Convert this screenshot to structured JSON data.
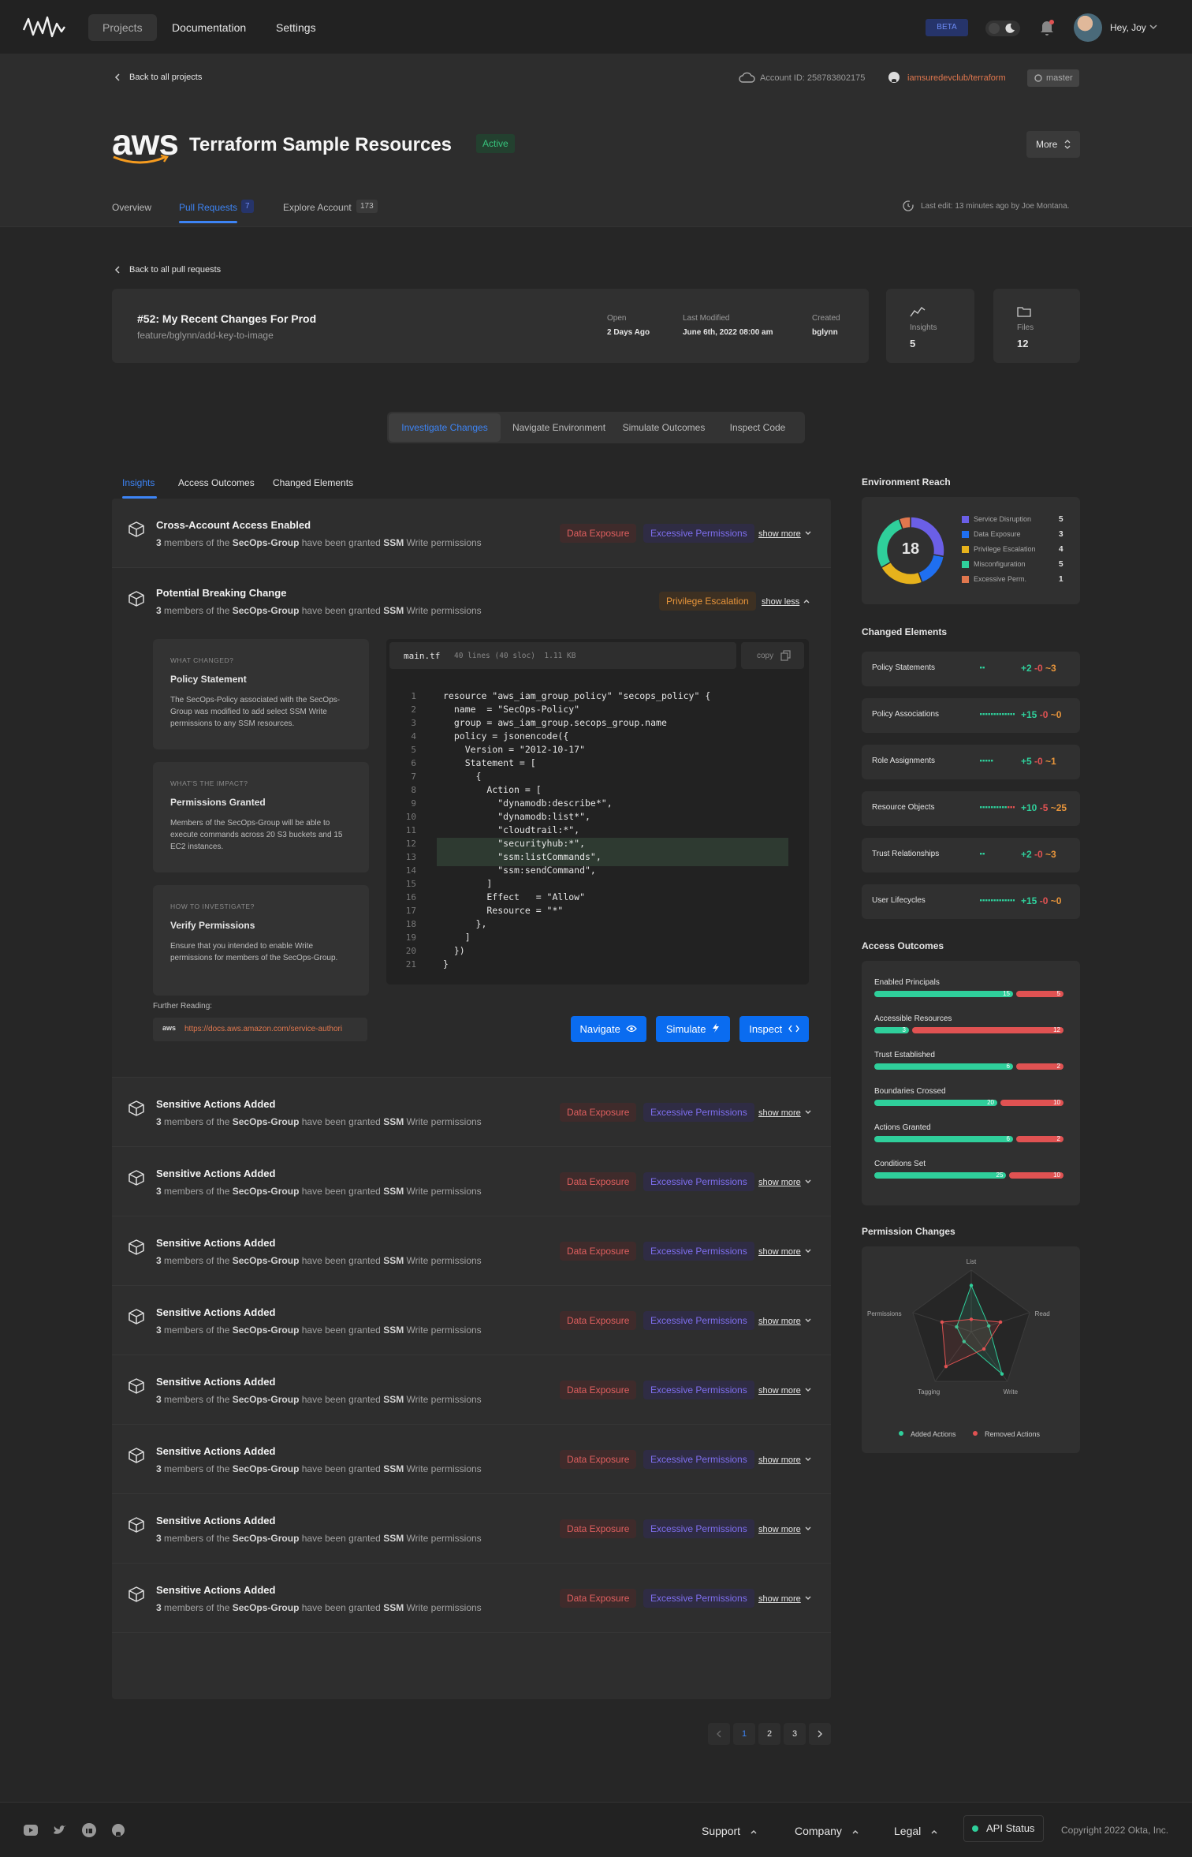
{
  "nav": {
    "projects": "Projects",
    "documentation": "Documentation",
    "settings": "Settings",
    "beta": "BETA",
    "greeting": "Hey, Joy"
  },
  "hero": {
    "back": "Back to all projects",
    "account": "Account ID: 258783802175",
    "repo": "iamsuredevclub/terraform",
    "branch": "master",
    "title": "Terraform Sample Resources",
    "status": "Active",
    "more": "More",
    "aws": "aws"
  },
  "tabs": {
    "overview": "Overview",
    "pulls": "Pull Requests",
    "pulls_count": "7",
    "explore": "Explore Account",
    "explore_count": "173",
    "last_edit": "Last edit: 13 minutes ago by Joe Montana."
  },
  "pr": {
    "back": "Back to all pull requests",
    "title": "#52: My Recent Changes For Prod",
    "branch": "feature/bglynn/add-key-to-image",
    "open_label": "Open",
    "open_value": "2 Days Ago",
    "modified_label": "Last Modified",
    "modified_value": "June 6th, 2022 08:00 am",
    "created_label": "Created",
    "created_value": "bglynn",
    "insights_label": "Insights",
    "insights_value": "5",
    "files_label": "Files",
    "files_value": "12"
  },
  "segments": [
    "Investigate Changes",
    "Navigate Environment",
    "Simulate Outcomes",
    "Inspect Code"
  ],
  "subtabs": [
    "Insights",
    "Access Outcomes",
    "Changed Elements"
  ],
  "row_sub": {
    "a": "3",
    "b": " members of the ",
    "c": "SecOps-Group",
    "d": " have been granted ",
    "e": "SSM",
    "f": " Write permissions"
  },
  "labels": {
    "data_exposure": "Data Exposure",
    "excessive": "Excessive Permissions",
    "priv": "Privilege Escalation",
    "show_more": "show more",
    "show_less": "show less"
  },
  "rows": [
    {
      "title": "Cross-Account Access Enabled"
    },
    {
      "title": "Potential Breaking Change"
    },
    {
      "title": "Sensitive Actions Added"
    },
    {
      "title": "Sensitive Actions Added"
    },
    {
      "title": "Sensitive Actions Added"
    },
    {
      "title": "Sensitive Actions Added"
    },
    {
      "title": "Sensitive Actions Added"
    },
    {
      "title": "Sensitive Actions Added"
    },
    {
      "title": "Sensitive Actions Added"
    },
    {
      "title": "Sensitive Actions Added"
    }
  ],
  "expanded": {
    "title": "Potential Breaking Change",
    "what_label": "WHAT CHANGED?",
    "what_title": "Policy Statement",
    "what_text": "The SecOps-Policy associated with the SecOps-Group was modified to add select SSM Write permissions to any SSM resources.",
    "impact_label": "WHAT'S THE IMPACT?",
    "impact_title": "Permissions Granted",
    "impact_text": "Members of the SecOps-Group will be able to execute commands across 20 S3 buckets and 15 EC2 instances.",
    "how_label": "HOW TO INVESTIGATE?",
    "how_title": "Verify Permissions",
    "how_text": "Ensure that you intended to enable Write permissions for members of the SecOps-Group.",
    "file": "main.tf",
    "file_meta": "40 lines (40 sloc)  1.11 KB",
    "copy": "copy",
    "further": "Further Reading:",
    "link": "https://docs.aws.amazon.com/service-authori",
    "navigate": "Navigate",
    "simulate": "Simulate",
    "inspect": "Inspect"
  },
  "code": [
    "resource \"aws_iam_group_policy\" \"secops_policy\" {",
    "  name  = \"SecOps-Policy\"",
    "  group = aws_iam_group.secops_group.name",
    "  policy = jsonencode({",
    "    Version = \"2012-10-17\"",
    "    Statement = [",
    "      {",
    "        Action = [",
    "          \"dynamodb:describe*\",",
    "          \"dynamodb:list*\",",
    "          \"cloudtrail:*\",",
    "          \"securityhub:*\",",
    "          \"ssm:listCommands\",",
    "          \"ssm:sendCommand\",",
    "        ]",
    "        Effect   = \"Allow\"",
    "        Resource = \"*\"",
    "      },",
    "    ]",
    "  })",
    "}"
  ],
  "env": {
    "title": "Environment Reach",
    "total": "18",
    "items": [
      {
        "name": "Service Disruption",
        "value": 5,
        "color": "#6b5fe6"
      },
      {
        "name": "Data Exposure",
        "value": 3,
        "color": "#1f6ff0"
      },
      {
        "name": "Privilege Escalation",
        "value": 4,
        "color": "#e6b21c"
      },
      {
        "name": "Misconfiguration",
        "value": 5,
        "color": "#2fcf9b"
      },
      {
        "name": "Excessive Perm.",
        "value": 1,
        "color": "#e0774e"
      }
    ]
  },
  "changed": {
    "title": "Changed Elements",
    "items": [
      {
        "name": "Policy Statements",
        "add": "+2",
        "rem": "-0",
        "mod": "~3"
      },
      {
        "name": "Policy Associations",
        "add": "+15",
        "rem": "-0",
        "mod": "~0"
      },
      {
        "name": "Role Assignments",
        "add": "+5",
        "rem": "-0",
        "mod": "~1"
      },
      {
        "name": "Resource Objects",
        "add": "+10",
        "rem": "-5",
        "mod": "~25"
      },
      {
        "name": "Trust Relationships",
        "add": "+2",
        "rem": "-0",
        "mod": "~3"
      },
      {
        "name": "User Lifecycles",
        "add": "+15",
        "rem": "-0",
        "mod": "~0"
      }
    ]
  },
  "access": {
    "title": "Access Outcomes",
    "items": [
      {
        "name": "Enabled Principals",
        "green": 15,
        "red": 5
      },
      {
        "name": "Accessible Resources",
        "green": 3,
        "red": 12
      },
      {
        "name": "Trust Established",
        "green": 6,
        "red": 2
      },
      {
        "name": "Boundaries Crossed",
        "green": 20,
        "red": 10
      },
      {
        "name": "Actions Granted",
        "green": 6,
        "red": 2
      },
      {
        "name": "Conditions Set",
        "green": 25,
        "red": 10
      }
    ]
  },
  "perm": {
    "title": "Permission Changes",
    "axes": [
      "List",
      "Read",
      "Write",
      "Tagging",
      "Permissions"
    ],
    "added": [
      0.75,
      0.3,
      0.85,
      0.2,
      0.25
    ],
    "removed": [
      0.2,
      0.5,
      0.35,
      0.7,
      0.5
    ],
    "legend_added": "Added Actions",
    "legend_removed": "Removed Actions"
  },
  "pagination": [
    "1",
    "2",
    "3"
  ],
  "footer": {
    "support": "Support",
    "company": "Company",
    "legal": "Legal",
    "api": "API Status",
    "copyright": "Copyright 2022 Okta, Inc."
  },
  "colors": {
    "accent": "#1f6ff0",
    "green": "#2fcf9b",
    "red": "#e05252",
    "orange": "#e8953b"
  }
}
